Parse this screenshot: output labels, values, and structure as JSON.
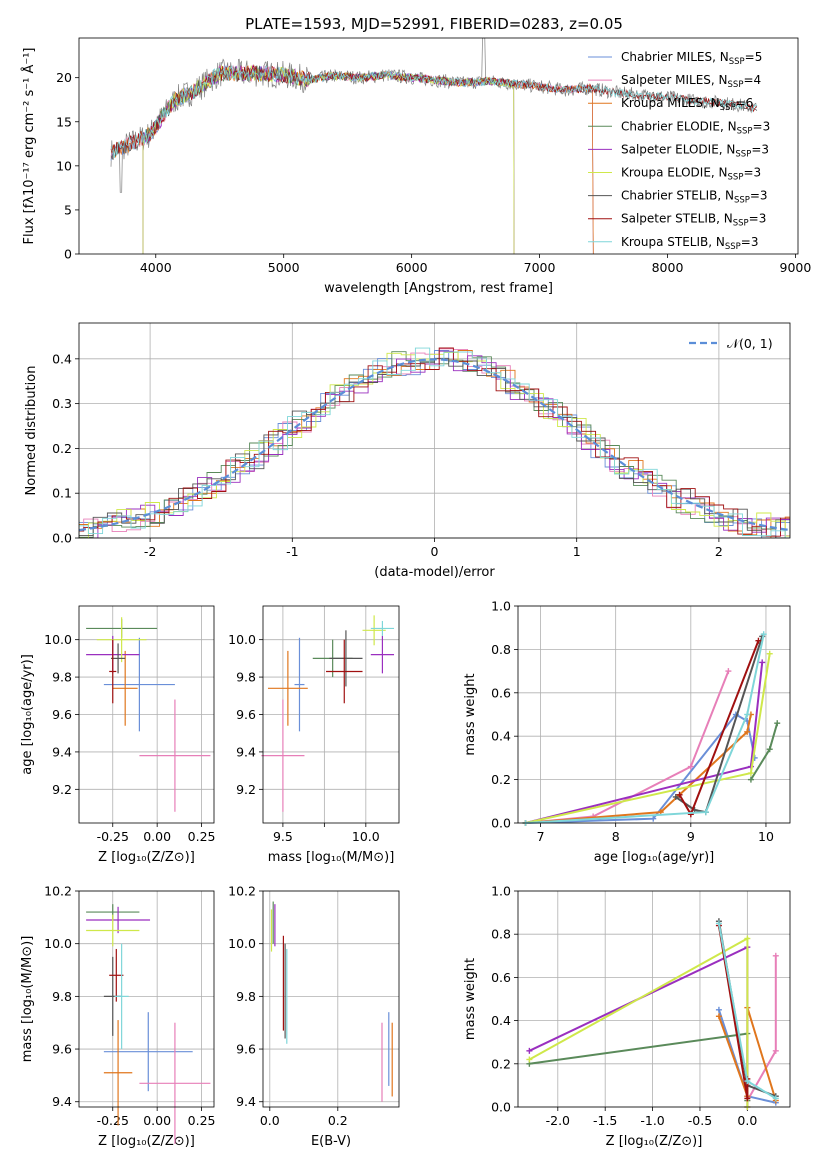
{
  "figure": {
    "title": "PLATE=1593, MJD=52991, FIBERID=0283, z=0.05"
  },
  "palette": {
    "Chabrier MILES": "#6a8fd8",
    "Salpeter MILES": "#e77fb8",
    "Kroupa MILES": "#e0761d",
    "Chabrier ELODIE": "#5a8a5a",
    "Salpeter ELODIE": "#9a2fbf",
    "Kroupa ELODIE": "#cfe84a",
    "Chabrier STELIB": "#555555",
    "Salpeter STELIB": "#a01010",
    "Kroupa STELIB": "#7fd6d9"
  },
  "chart_data": [
    {
      "id": "spectrum",
      "type": "line",
      "title": "PLATE=1593, MJD=52991, FIBERID=0283, z=0.05",
      "xlabel": "wavelength [Angstrom, rest frame]",
      "ylabel": "Flux [fλ10⁻¹⁷ erg cm⁻² s⁻¹ Å⁻¹]",
      "xlim": [
        3400,
        9020
      ],
      "ylim": [
        0,
        24.5
      ],
      "xticks": [
        4000,
        5000,
        6000,
        7000,
        8000,
        9000
      ],
      "yticks": [
        0,
        5,
        10,
        15,
        20
      ],
      "legend_position": "top-right",
      "legend": [
        {
          "name": "Chabrier MILES",
          "n": "5"
        },
        {
          "name": "Salpeter MILES",
          "n": "4"
        },
        {
          "name": "Kroupa MILES",
          "n": "6"
        },
        {
          "name": "Chabrier ELODIE",
          "n": "3"
        },
        {
          "name": "Salpeter ELODIE",
          "n": "3"
        },
        {
          "name": "Kroupa ELODIE",
          "n": "3"
        },
        {
          "name": "Chabrier STELIB",
          "n": "3"
        },
        {
          "name": "Salpeter STELIB",
          "n": "3"
        },
        {
          "name": "Kroupa STELIB",
          "n": "3"
        }
      ],
      "continuum": [
        [
          3650,
          11.5
        ],
        [
          3800,
          12.5
        ],
        [
          3950,
          13.5
        ],
        [
          4050,
          15.5
        ],
        [
          4150,
          17.5
        ],
        [
          4300,
          18.5
        ],
        [
          4500,
          20.5
        ],
        [
          4800,
          20.5
        ],
        [
          5000,
          20.3
        ],
        [
          5200,
          19.8
        ],
        [
          5400,
          20.2
        ],
        [
          5600,
          20.0
        ],
        [
          5800,
          20.3
        ],
        [
          6000,
          20.0
        ],
        [
          6200,
          19.7
        ],
        [
          6400,
          19.4
        ],
        [
          6600,
          19.6
        ],
        [
          6800,
          19.3
        ],
        [
          7000,
          19.0
        ],
        [
          7200,
          18.6
        ],
        [
          7400,
          18.8
        ],
        [
          7600,
          18.3
        ],
        [
          7800,
          18.0
        ],
        [
          8000,
          17.8
        ],
        [
          8200,
          17.4
        ],
        [
          8400,
          17.2
        ],
        [
          8600,
          16.8
        ],
        [
          8700,
          16.5
        ]
      ]
    },
    {
      "id": "residuals",
      "type": "line",
      "xlabel": "(data-model)/error",
      "ylabel": "Normed distribution",
      "xlim": [
        -2.5,
        2.5
      ],
      "ylim": [
        0,
        0.48
      ],
      "xticks": [
        -2,
        -1,
        0,
        1,
        2
      ],
      "yticks": [
        0.0,
        0.1,
        0.2,
        0.3,
        0.4
      ],
      "legend_position": "top-right",
      "series": [
        {
          "name": "𝒩(0, 1)",
          "gaussian_mean": 0,
          "gaussian_sigma": 1
        }
      ]
    },
    {
      "id": "age-vs-Z",
      "type": "scatter",
      "xlabel": "Z [log₁₀(Z/Z⊙)]",
      "ylabel": "age  [log₁₀(age/yr)]",
      "xlim": [
        -0.44,
        0.32
      ],
      "ylim": [
        9.02,
        10.18
      ],
      "xticks": [
        -0.25,
        0.0,
        0.25
      ],
      "ytick_labels": [
        "9.2",
        "9.4",
        "9.6",
        "9.8",
        "10.0"
      ],
      "yticks": [
        9.2,
        9.4,
        9.6,
        9.8,
        10.0
      ],
      "points": [
        {
          "model": "Chabrier MILES",
          "x": -0.1,
          "xerr": 0.2,
          "y": 9.76,
          "yerr": 0.25
        },
        {
          "model": "Salpeter MILES",
          "x": 0.1,
          "xerr": 0.2,
          "y": 9.38,
          "yerr": 0.3
        },
        {
          "model": "Kroupa MILES",
          "x": -0.18,
          "xerr": 0.07,
          "y": 9.74,
          "yerr": 0.2
        },
        {
          "model": "Chabrier ELODIE",
          "x": -0.2,
          "xerr": 0.2,
          "y": 10.06,
          "yerr": 0.05
        },
        {
          "model": "Salpeter ELODIE",
          "x": -0.25,
          "xerr": 0.15,
          "y": 9.92,
          "yerr": 0.1
        },
        {
          "model": "Kroupa ELODIE",
          "x": -0.2,
          "xerr": 0.14,
          "y": 10.0,
          "yerr": 0.12
        },
        {
          "model": "Chabrier STELIB",
          "x": -0.22,
          "xerr": 0.04,
          "y": 9.9,
          "yerr": 0.08
        },
        {
          "model": "Salpeter STELIB",
          "x": -0.25,
          "xerr": 0.02,
          "y": 9.83,
          "yerr": 0.17
        }
      ]
    },
    {
      "id": "age-vs-mass",
      "type": "scatter",
      "xlabel": "mass [log₁₀(M/M⊙)]",
      "xlim": [
        9.38,
        10.2
      ],
      "ylim": [
        9.02,
        10.18
      ],
      "xticks": [
        9.5,
        9.75,
        10.0
      ],
      "xtick_labels": [
        "9.5",
        "",
        "10.0"
      ],
      "yticks": [
        9.2,
        9.4,
        9.6,
        9.8,
        10.0
      ],
      "ytick_labels": [
        "9.2",
        "9.4",
        "9.6",
        "9.8",
        "10.0"
      ],
      "points": [
        {
          "model": "Chabrier MILES",
          "x": 9.6,
          "xerr": 0.03,
          "y": 9.76,
          "yerr": 0.25
        },
        {
          "model": "Salpeter MILES",
          "x": 9.5,
          "xerr": 0.13,
          "y": 9.38,
          "yerr": 0.3
        },
        {
          "model": "Kroupa MILES",
          "x": 9.53,
          "xerr": 0.12,
          "y": 9.74,
          "yerr": 0.2
        },
        {
          "model": "Chabrier ELODIE",
          "x": 9.8,
          "xerr": 0.12,
          "y": 9.9,
          "yerr": 0.1
        },
        {
          "model": "Salpeter ELODIE",
          "x": 10.1,
          "xerr": 0.07,
          "y": 9.92,
          "yerr": 0.1
        },
        {
          "model": "Kroupa ELODIE",
          "x": 10.05,
          "xerr": 0.07,
          "y": 10.05,
          "yerr": 0.08
        },
        {
          "model": "Chabrier STELIB",
          "x": 9.88,
          "xerr": 0.1,
          "y": 9.9,
          "yerr": 0.15
        },
        {
          "model": "Salpeter STELIB",
          "x": 9.87,
          "xerr": 0.11,
          "y": 9.83,
          "yerr": 0.17
        },
        {
          "model": "Kroupa STELIB",
          "x": 10.1,
          "xerr": 0.07,
          "y": 10.06,
          "yerr": 0.04
        }
      ]
    },
    {
      "id": "weight-vs-age",
      "type": "line",
      "xlabel": "age  [log₁₀(age/yr)]",
      "ylabel": "mass weight",
      "xlim": [
        6.7,
        10.32
      ],
      "ylim": [
        0,
        1.0
      ],
      "xticks": [
        7,
        8,
        9,
        10
      ],
      "yticks": [
        0.0,
        0.2,
        0.4,
        0.6,
        0.8,
        1.0
      ],
      "series": [
        {
          "name": "Chabrier MILES",
          "x": [
            6.8,
            8.5,
            9.6,
            9.75,
            9.85
          ],
          "y": [
            0.0,
            0.02,
            0.5,
            0.47,
            0.3
          ]
        },
        {
          "name": "Salpeter MILES",
          "x": [
            6.8,
            7.7,
            9.0,
            9.5
          ],
          "y": [
            0.0,
            0.03,
            0.26,
            0.7
          ]
        },
        {
          "name": "Kroupa MILES",
          "x": [
            6.8,
            8.6,
            9.75,
            9.8
          ],
          "y": [
            0.0,
            0.05,
            0.42,
            0.5
          ]
        },
        {
          "name": "Chabrier ELODIE",
          "x": [
            9.8,
            10.05,
            10.15
          ],
          "y": [
            0.2,
            0.34,
            0.46
          ]
        },
        {
          "name": "Salpeter ELODIE",
          "x": [
            6.8,
            9.8,
            9.95
          ],
          "y": [
            0.0,
            0.26,
            0.74
          ]
        },
        {
          "name": "Kroupa ELODIE",
          "x": [
            6.8,
            9.8,
            10.05
          ],
          "y": [
            0.0,
            0.23,
            0.78
          ]
        },
        {
          "name": "Chabrier STELIB",
          "x": [
            8.8,
            9.05,
            9.2,
            9.95
          ],
          "y": [
            0.12,
            0.06,
            0.05,
            0.86
          ]
        },
        {
          "name": "Salpeter STELIB",
          "x": [
            8.85,
            9.0,
            9.9
          ],
          "y": [
            0.13,
            0.04,
            0.84
          ]
        },
        {
          "name": "Kroupa STELIB",
          "x": [
            6.8,
            9.2,
            9.75,
            9.97
          ],
          "y": [
            0.0,
            0.05,
            0.5,
            0.87
          ]
        }
      ]
    },
    {
      "id": "mass-vs-Z",
      "type": "scatter",
      "xlabel": "Z [log₁₀(Z/Z⊙)]",
      "ylabel": "mass [log₁₀(M/M⊙)]",
      "xlim": [
        -0.44,
        0.32
      ],
      "ylim": [
        9.38,
        10.2
      ],
      "xticks": [
        -0.25,
        0.0,
        0.25
      ],
      "yticks": [
        9.4,
        9.6,
        9.8,
        10.0,
        10.2
      ],
      "ytick_labels": [
        "9.4",
        "9.6",
        "9.8",
        "10.0",
        "10.2"
      ],
      "points": [
        {
          "model": "Chabrier MILES",
          "x": -0.05,
          "xerr": 0.25,
          "y": 9.59,
          "yerr": 0.15
        },
        {
          "model": "Salpeter MILES",
          "x": 0.1,
          "xerr": 0.2,
          "y": 9.47,
          "yerr": 0.23
        },
        {
          "model": "Kroupa MILES",
          "x": -0.22,
          "xerr": 0.08,
          "y": 9.51,
          "yerr": 0.2
        },
        {
          "model": "Chabrier ELODIE",
          "x": -0.25,
          "xerr": 0.15,
          "y": 10.12,
          "yerr": 0.03
        },
        {
          "model": "Salpeter ELODIE",
          "x": -0.22,
          "xerr": 0.18,
          "y": 10.09,
          "yerr": 0.05
        },
        {
          "model": "Kroupa ELODIE",
          "x": -0.25,
          "xerr": 0.15,
          "y": 10.05,
          "yerr": 0.06
        },
        {
          "model": "Chabrier STELIB",
          "x": -0.25,
          "xerr": 0.05,
          "y": 9.8,
          "yerr": 0.15
        },
        {
          "model": "Salpeter STELIB",
          "x": -0.23,
          "xerr": 0.04,
          "y": 9.88,
          "yerr": 0.1
        },
        {
          "model": "Kroupa STELIB",
          "x": -0.2,
          "xerr": 0.04,
          "y": 9.8,
          "yerr": 0.2
        }
      ]
    },
    {
      "id": "mass-vs-EBV",
      "type": "scatter",
      "xlabel": "E(B-V)",
      "xlim": [
        -0.02,
        0.38
      ],
      "ylim": [
        9.38,
        10.2
      ],
      "xticks": [
        0.0,
        0.2
      ],
      "xtick_labels": [
        "0.0",
        "0.2"
      ],
      "yticks": [
        9.4,
        9.6,
        9.8,
        10.0,
        10.2
      ],
      "ytick_labels": [
        "9.4",
        "9.6",
        "9.8",
        "10.0",
        "10.2"
      ],
      "points": [
        {
          "model": "Chabrier MILES",
          "x": 0.35,
          "xerr": 0.0,
          "y": 9.6,
          "yerr": 0.14
        },
        {
          "model": "Salpeter MILES",
          "x": 0.33,
          "xerr": 0.0,
          "y": 9.55,
          "yerr": 0.15
        },
        {
          "model": "Kroupa MILES",
          "x": 0.36,
          "xerr": 0.0,
          "y": 9.56,
          "yerr": 0.14
        },
        {
          "model": "Chabrier ELODIE",
          "x": 0.01,
          "xerr": 0.0,
          "y": 10.08,
          "yerr": 0.08
        },
        {
          "model": "Salpeter ELODIE",
          "x": 0.015,
          "xerr": 0.0,
          "y": 10.07,
          "yerr": 0.08
        },
        {
          "model": "Kroupa ELODIE",
          "x": 0.005,
          "xerr": 0.0,
          "y": 10.05,
          "yerr": 0.08
        },
        {
          "model": "Chabrier STELIB",
          "x": 0.045,
          "xerr": 0.0,
          "y": 9.82,
          "yerr": 0.18
        },
        {
          "model": "Salpeter STELIB",
          "x": 0.04,
          "xerr": 0.0,
          "y": 9.85,
          "yerr": 0.18
        },
        {
          "model": "Kroupa STELIB",
          "x": 0.05,
          "xerr": 0.0,
          "y": 9.8,
          "yerr": 0.18
        }
      ]
    },
    {
      "id": "weight-vs-Z",
      "type": "line",
      "xlabel": "Z [log₁₀(Z/Z⊙)]",
      "ylabel": "mass weight",
      "xlim": [
        -2.42,
        0.45
      ],
      "ylim": [
        0,
        1.0
      ],
      "xticks": [
        -2.0,
        -1.5,
        -1.0,
        -0.5,
        0.0
      ],
      "yticks": [
        0.0,
        0.2,
        0.4,
        0.6,
        0.8,
        1.0
      ],
      "series": [
        {
          "name": "Chabrier MILES",
          "x": [
            -0.3,
            0.0,
            0.3
          ],
          "y": [
            0.45,
            0.05,
            0.02
          ]
        },
        {
          "name": "Salpeter MILES",
          "x": [
            0.0,
            0.3,
            0.3
          ],
          "y": [
            0.03,
            0.26,
            0.7
          ]
        },
        {
          "name": "Kroupa MILES",
          "x": [
            -0.3,
            0.0,
            0.0,
            0.3
          ],
          "y": [
            0.42,
            0.05,
            0.46,
            0.03
          ]
        },
        {
          "name": "Chabrier ELODIE",
          "x": [
            -2.3,
            0.0,
            0.0
          ],
          "y": [
            0.2,
            0.34,
            0.03
          ]
        },
        {
          "name": "Salpeter ELODIE",
          "x": [
            -2.3,
            0.0,
            0.0
          ],
          "y": [
            0.26,
            0.74,
            0.0
          ]
        },
        {
          "name": "Kroupa ELODIE",
          "x": [
            -2.3,
            0.0,
            0.0
          ],
          "y": [
            0.22,
            0.78,
            0.0
          ]
        },
        {
          "name": "Chabrier STELIB",
          "x": [
            -0.3,
            0.0,
            0.3
          ],
          "y": [
            0.86,
            0.1,
            0.05
          ]
        },
        {
          "name": "Salpeter STELIB",
          "x": [
            -0.3,
            0.0,
            0.0
          ],
          "y": [
            0.84,
            0.04,
            0.13
          ]
        },
        {
          "name": "Kroupa STELIB",
          "x": [
            -0.3,
            0.0,
            0.3
          ],
          "y": [
            0.85,
            0.12,
            0.04
          ]
        }
      ]
    }
  ]
}
